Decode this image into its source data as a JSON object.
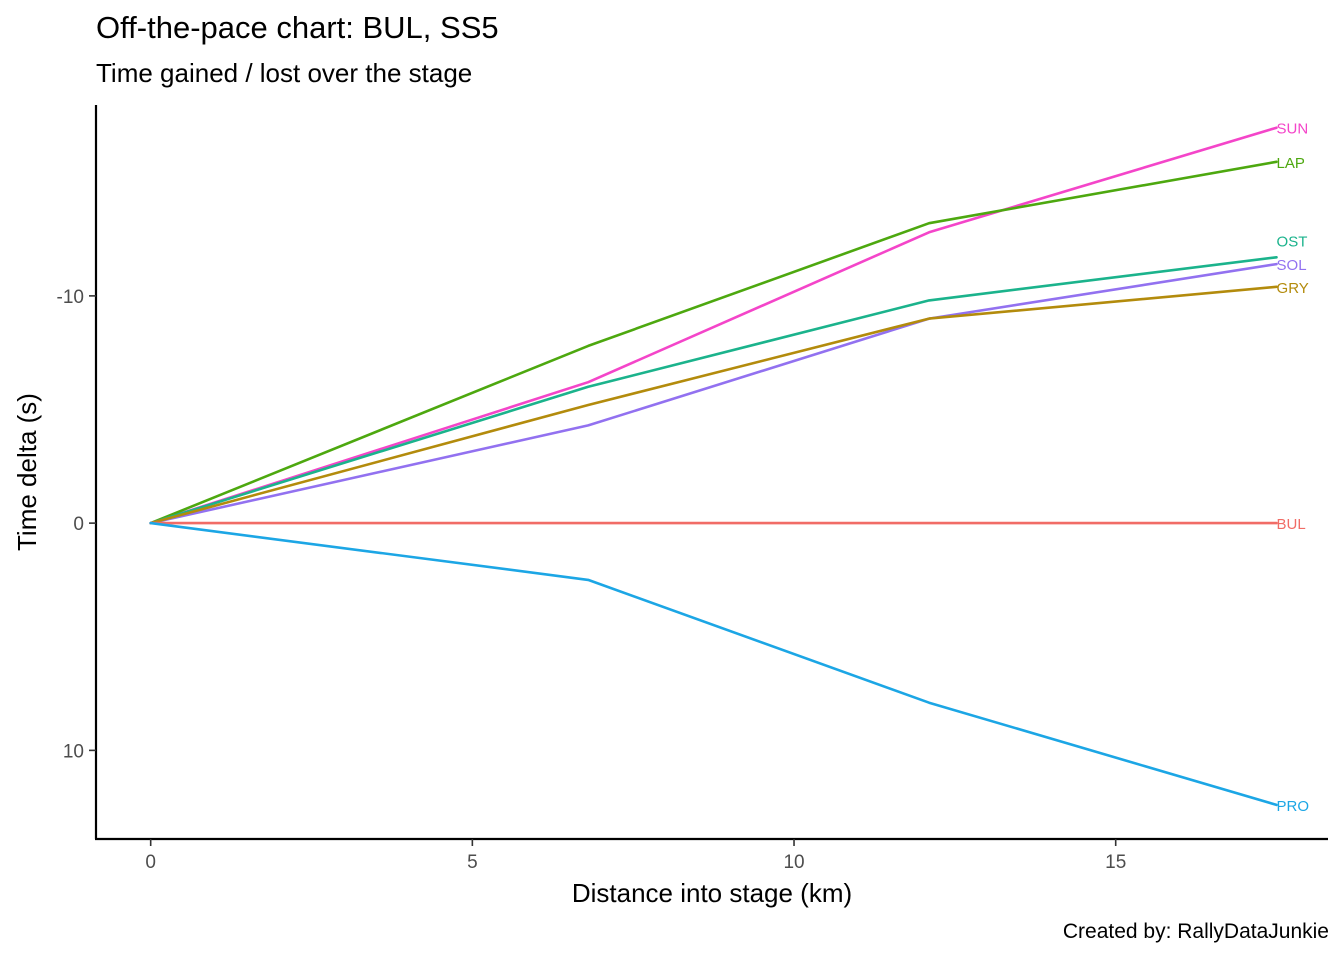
{
  "chart_data": {
    "type": "line",
    "title": "Off-the-pace chart: BUL, SS5",
    "subtitle": "Time gained / lost over the stage",
    "caption": "Created by: RallyDataJunkie",
    "xlabel": "Distance into stage (km)",
    "ylabel": "Time delta (s)",
    "xlim": [
      -0.85,
      18.3
    ],
    "ylim": [
      -18.4,
      13.9
    ],
    "y_reversed": true,
    "x_ticks": [
      0,
      5,
      10,
      15
    ],
    "x_tick_labels": [
      "0",
      "5",
      "10",
      "15"
    ],
    "y_ticks": [
      -10,
      0,
      10
    ],
    "y_tick_labels": [
      "-10",
      "0",
      "10"
    ],
    "grid": false,
    "legend": "none (direct labels at line ends)",
    "x": [
      0,
      6.8,
      12.1,
      17.5
    ],
    "series": [
      {
        "name": "SUN",
        "color": "#F445C9",
        "values": [
          0,
          -6.2,
          -12.8,
          -17.4
        ]
      },
      {
        "name": "LAP",
        "color": "#4DA80F",
        "values": [
          0,
          -7.8,
          -13.2,
          -15.9
        ]
      },
      {
        "name": "OST",
        "color": "#1BB38C",
        "values": [
          0,
          -6.0,
          -9.8,
          -11.7
        ]
      },
      {
        "name": "SOL",
        "color": "#9271F0",
        "values": [
          0,
          -4.3,
          -9.0,
          -11.4
        ]
      },
      {
        "name": "GRY",
        "color": "#B38B0C",
        "values": [
          0,
          -5.2,
          -9.0,
          -10.4
        ]
      },
      {
        "name": "BUL",
        "color": "#F16C66",
        "values": [
          0,
          0,
          0,
          0
        ]
      },
      {
        "name": "PRO",
        "color": "#1CA6E5",
        "values": [
          0,
          2.5,
          7.9,
          12.4
        ]
      }
    ]
  }
}
